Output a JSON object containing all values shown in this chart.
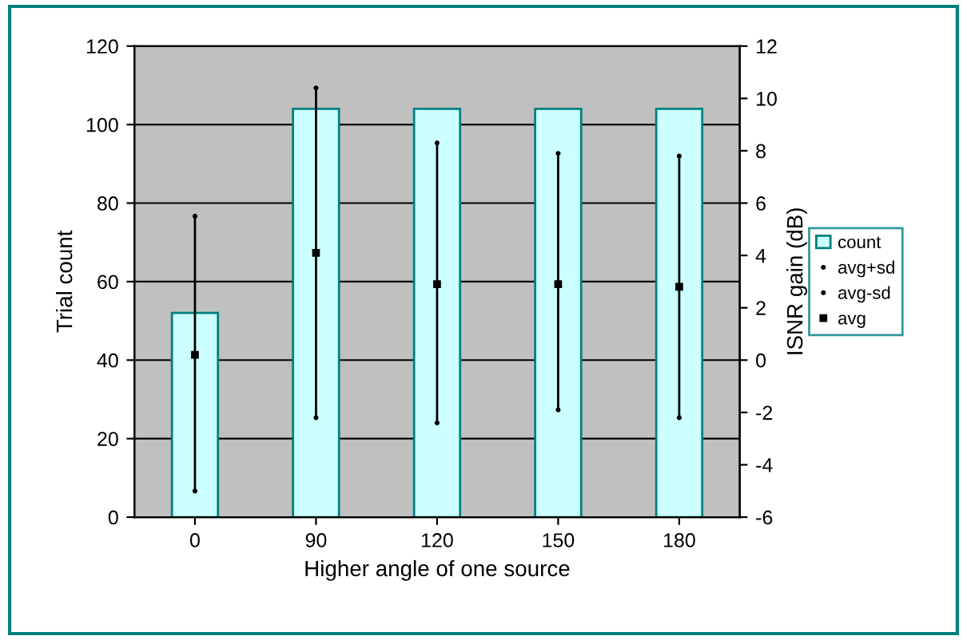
{
  "chart_data": {
    "type": "bar",
    "xlabel": "Higher angle of one source",
    "ylabel": "Trial count",
    "y2label": "ISNR gain (dB)",
    "categories": [
      "0",
      "90",
      "120",
      "150",
      "180"
    ],
    "series": [
      {
        "name": "count",
        "color": "#ccffff",
        "values": [
          52,
          104,
          104,
          104,
          104
        ]
      },
      {
        "name": "avg+sd",
        "type": "scatter",
        "axis": "y2",
        "color": "#000000",
        "values": [
          5.5,
          10.4,
          8.3,
          7.9,
          7.8
        ]
      },
      {
        "name": "avg-sd",
        "type": "scatter",
        "axis": "y2",
        "color": "#000000",
        "values": [
          -5.0,
          -2.2,
          -2.4,
          -1.9,
          -2.2
        ]
      },
      {
        "name": "avg",
        "type": "scatter",
        "axis": "y2",
        "marker": "square",
        "color": "#000000",
        "values": [
          0.2,
          4.1,
          2.9,
          2.9,
          2.8
        ]
      }
    ],
    "ylim": [
      0,
      120
    ],
    "yticks": [
      0,
      20,
      40,
      60,
      80,
      100,
      120
    ],
    "y2lim": [
      -6,
      12
    ],
    "y2ticks": [
      -6,
      -4,
      -2,
      0,
      2,
      4,
      6,
      8,
      10,
      12
    ],
    "grid": "y",
    "legend": "right"
  }
}
